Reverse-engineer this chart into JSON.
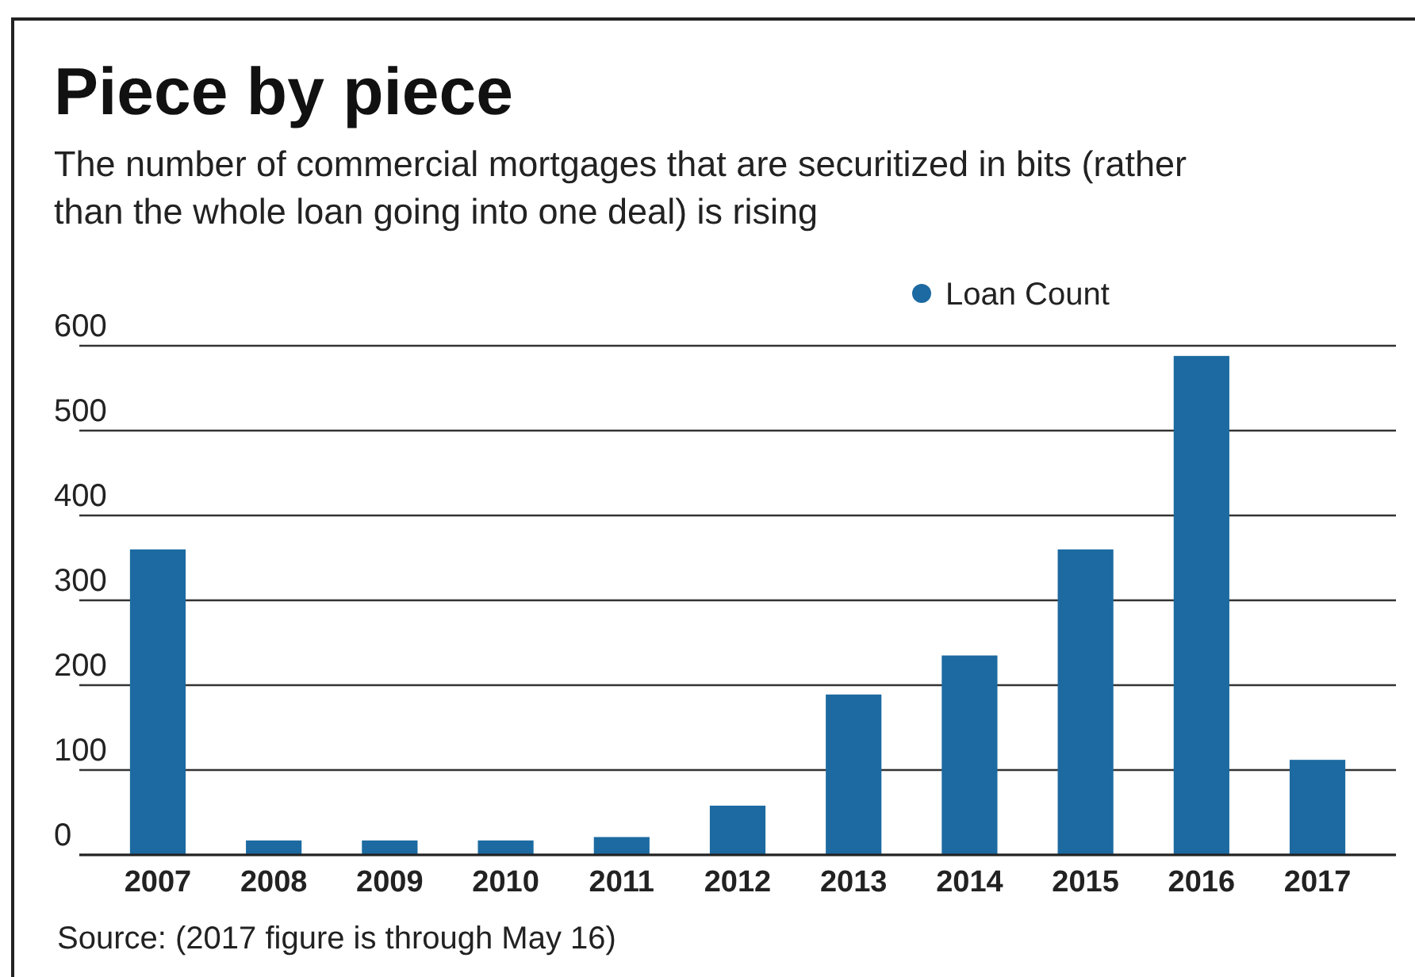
{
  "chart_data": {
    "type": "bar",
    "title": "Piece by piece",
    "subtitle": "The number of commercial mortgages that are securitized in bits (rather than the whole loan going into one deal) is rising",
    "categories": [
      "2007",
      "2008",
      "2009",
      "2010",
      "2011",
      "2012",
      "2013",
      "2014",
      "2015",
      "2016",
      "2017"
    ],
    "series": [
      {
        "name": "Loan Count",
        "color": "#1c6aa1",
        "values": [
          360,
          17,
          17,
          17,
          21,
          58,
          189,
          235,
          360,
          588,
          112
        ]
      }
    ],
    "ylim": [
      0,
      600
    ],
    "yticks": [
      0,
      100,
      200,
      300,
      400,
      500,
      600
    ],
    "grid": "y",
    "legend": "top right",
    "annotations": [
      "Source: (2017 figure is through May 16)"
    ]
  }
}
